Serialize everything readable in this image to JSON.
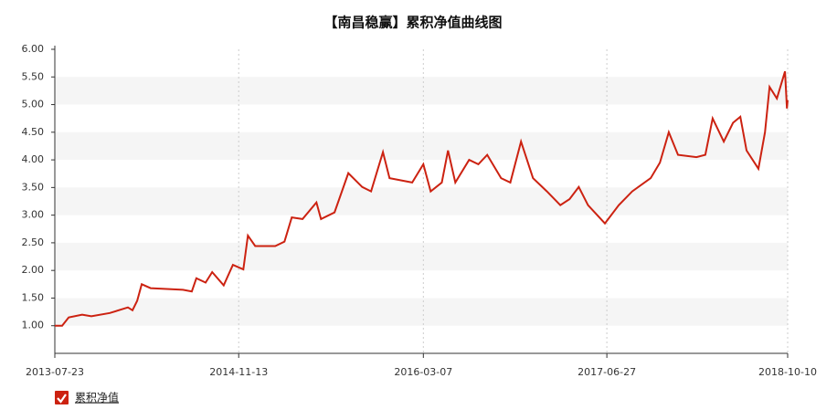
{
  "chart_data": {
    "type": "line",
    "title": "【南昌稳赢】累积净值曲线图",
    "x": [
      "2013-07-23",
      "2013-08-11",
      "2013-08-28",
      "2013-10-02",
      "2013-10-26",
      "2013-12-13",
      "2014-01-29",
      "2014-02-10",
      "2014-02-22",
      "2014-03-06",
      "2014-03-29",
      "2014-06-21",
      "2014-07-14",
      "2014-07-26",
      "2014-08-19",
      "2014-09-05",
      "2014-10-05",
      "2014-10-29",
      "2014-11-25",
      "2014-12-07",
      "2014-12-26",
      "2015-02-16",
      "2015-03-12",
      "2015-03-31",
      "2015-04-28",
      "2015-06-03",
      "2015-06-15",
      "2015-07-20",
      "2015-08-25",
      "2015-09-30",
      "2015-10-23",
      "2015-11-23",
      "2015-12-10",
      "2016-02-07",
      "2016-03-07",
      "2016-03-26",
      "2016-04-24",
      "2016-05-10",
      "2016-05-29",
      "2016-07-04",
      "2016-07-28",
      "2016-08-20",
      "2016-09-25",
      "2016-10-19",
      "2016-11-16",
      "2016-12-17",
      "2017-01-22",
      "2017-02-26",
      "2017-03-22",
      "2017-04-15",
      "2017-05-09",
      "2017-06-22",
      "2017-07-28",
      "2017-09-01",
      "2017-10-19",
      "2017-11-12",
      "2017-12-05",
      "2017-12-29",
      "2018-02-15",
      "2018-03-10",
      "2018-03-29",
      "2018-04-27",
      "2018-05-21",
      "2018-06-09",
      "2018-06-25",
      "2018-07-26",
      "2018-08-12",
      "2018-08-24",
      "2018-09-12",
      "2018-10-03",
      "2018-10-08",
      "2018-10-10"
    ],
    "series": [
      {
        "name": "累积净值",
        "color": "#cc2211",
        "values": [
          1.0,
          1.0,
          1.15,
          1.2,
          1.17,
          1.23,
          1.33,
          1.28,
          1.45,
          1.75,
          1.68,
          1.65,
          1.62,
          1.86,
          1.78,
          1.97,
          1.73,
          2.1,
          2.02,
          2.63,
          2.44,
          2.44,
          2.52,
          2.96,
          2.93,
          3.23,
          2.93,
          3.05,
          3.76,
          3.51,
          3.43,
          4.14,
          3.67,
          3.59,
          3.92,
          3.43,
          3.59,
          4.17,
          3.59,
          4.0,
          3.92,
          4.09,
          3.67,
          3.59,
          4.33,
          3.67,
          3.43,
          3.18,
          3.29,
          3.51,
          3.18,
          2.85,
          3.18,
          3.43,
          3.67,
          3.95,
          4.5,
          4.09,
          4.05,
          4.09,
          4.75,
          4.33,
          4.67,
          4.78,
          4.17,
          3.84,
          4.5,
          5.32,
          5.11,
          5.6,
          4.93,
          5.08
        ]
      }
    ],
    "xlim": [
      "2013-07-23",
      "2018-10-10"
    ],
    "xticks": [
      "2013-07-23",
      "2014-11-13",
      "2016-03-07",
      "2017-06-27",
      "2018-10-10"
    ],
    "ylim": [
      0.5,
      6
    ],
    "yticks": [
      {
        "value": 1,
        "label": "1.00"
      },
      {
        "value": 1.5,
        "label": "1.50"
      },
      {
        "value": 2,
        "label": "2.00"
      },
      {
        "value": 2.5,
        "label": "2.50"
      },
      {
        "value": 3,
        "label": "3.00"
      },
      {
        "value": 3.5,
        "label": "3.50"
      },
      {
        "value": 4,
        "label": "4.00"
      },
      {
        "value": 4.5,
        "label": "4.50"
      },
      {
        "value": 5,
        "label": "5.00"
      },
      {
        "value": 5.5,
        "label": "5.50"
      },
      {
        "value": 6,
        "label": "6.00"
      }
    ],
    "grid": true,
    "legend": "bottom-left"
  }
}
